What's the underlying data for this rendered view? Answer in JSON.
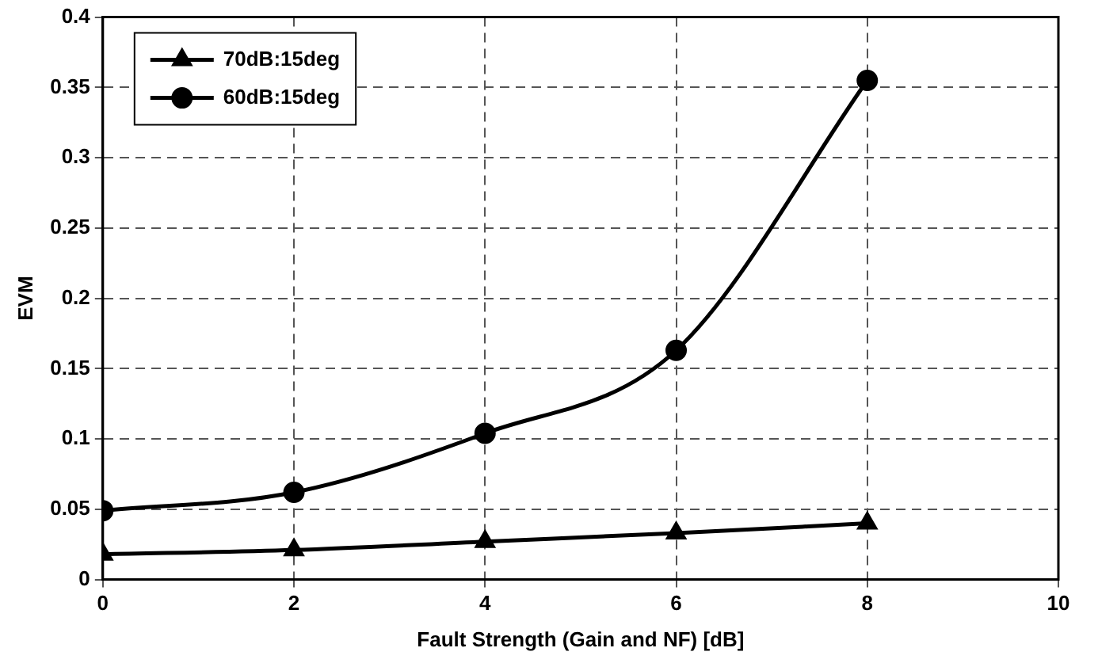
{
  "chart_data": {
    "type": "line",
    "xlabel": "Fault Strength (Gain and NF) [dB]",
    "ylabel": "EVM",
    "x": [
      0,
      2,
      4,
      6,
      8
    ],
    "series": [
      {
        "name": "70dB:15deg",
        "color": "#000000",
        "marker": "triangle",
        "values": [
          0.018,
          0.021,
          0.027,
          0.033,
          0.04
        ]
      },
      {
        "name": "60dB:15deg",
        "color": "#000000",
        "marker": "circle",
        "values": [
          0.049,
          0.062,
          0.104,
          0.163,
          0.355
        ]
      }
    ],
    "xlim": [
      0,
      10
    ],
    "xticks": [
      0,
      2,
      4,
      6,
      8,
      10
    ],
    "ylim": [
      0,
      0.4
    ],
    "yticks": [
      0,
      0.05,
      0.1,
      0.15,
      0.2,
      0.25,
      0.3,
      0.35,
      0.4
    ],
    "grid": true,
    "legend": "top left",
    "line_style": "solid"
  }
}
